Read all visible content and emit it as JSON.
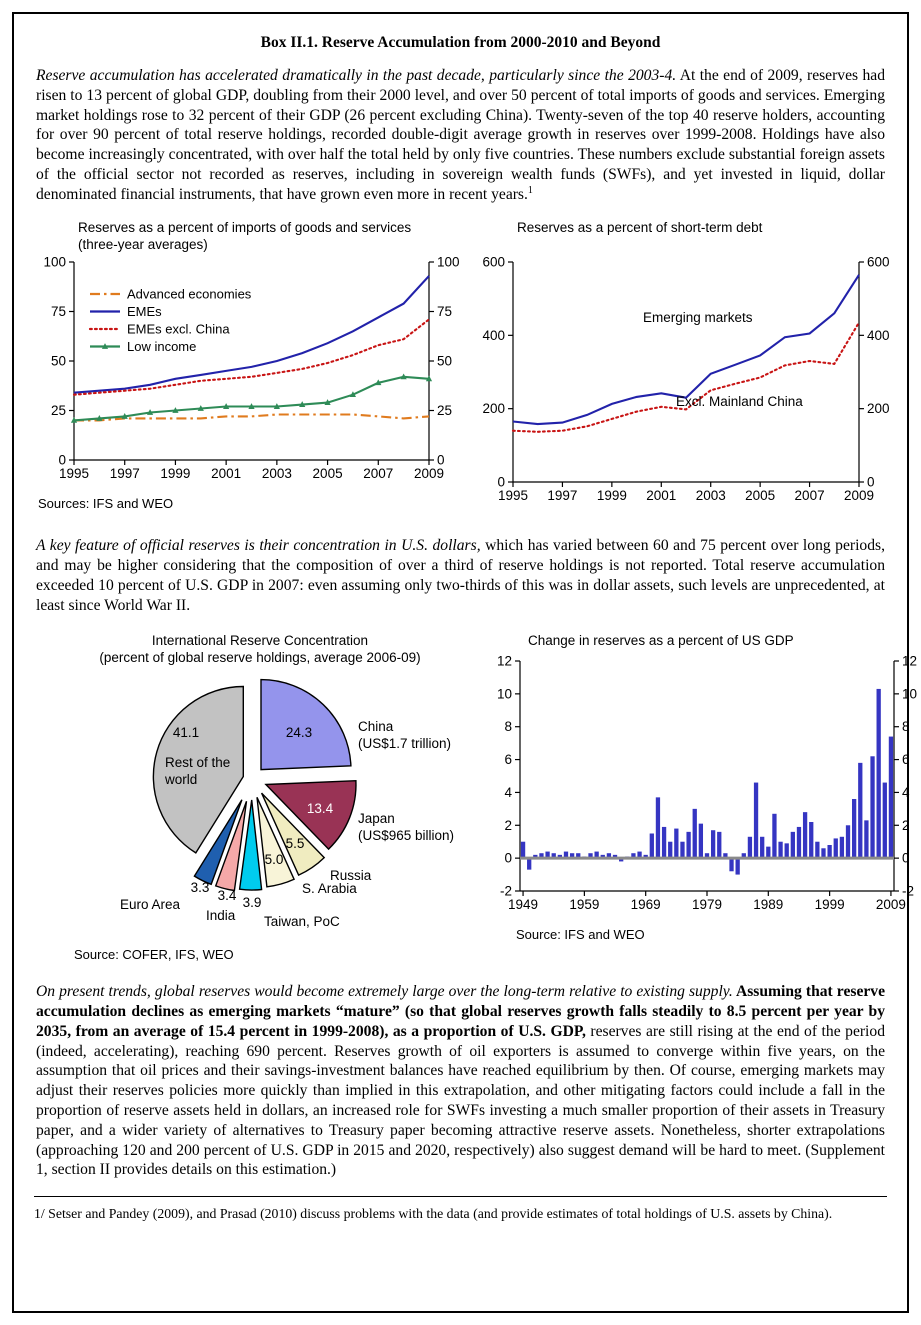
{
  "box": {
    "title": "Box II.1. Reserve Accumulation from 2000-2010 and Beyond"
  },
  "paragraphs": {
    "p1_italic": "Reserve accumulation has accelerated dramatically in the past decade, particularly since the 2003-4.",
    "p1_rest": " At the end of 2009, reserves had risen to 13 percent of global GDP, doubling from their 2000 level, and over 50 percent of total imports of goods and services. Emerging market holdings rose to 32 percent of their GDP (26 percent excluding China). Twenty-seven of the top 40 reserve holders, accounting for over 90 percent of total reserve holdings, recorded double-digit average growth in reserves over 1999-2008. Holdings have also become increasingly concentrated, with over half the total held by only five countries. These numbers exclude substantial foreign assets of the official sector not recorded as reserves, including in sovereign wealth funds (SWFs), and yet invested in liquid, dollar denominated financial instruments, that have grown even more in recent years.",
    "p1_footnote_mark": "1",
    "p2_italic": "A key feature of official reserves is their concentration in U.S. dollars,",
    "p2_rest": " which has varied between 60 and 75 percent over long periods, and may be higher considering that the composition of over a third of reserve holdings is not reported. Total reserve accumulation exceeded 10 percent of U.S. GDP in 2007: even assuming only two-thirds of this was in dollar assets, such levels are unprecedented, at least since World War II.",
    "p3_italic": "On present trends, global reserves would become extremely large over the long-term relative to existing supply.",
    "p3_bold": " Assuming that reserve accumulation declines as emerging markets “mature” (so that global reserves growth falls steadily to 8.5 percent per year by 2035, from an average of 15.4 percent in 1999-2008), as a proportion of U.S. GDP,",
    "p3_rest": " reserves are still rising at the end of the period (indeed, accelerating), reaching 690 percent. Reserves growth of oil exporters is assumed to converge within five years, on the assumption that oil prices and their savings-investment balances have reached equilibrium by then. Of course, emerging markets may adjust their reserves policies more quickly than implied in this extrapolation, and other mitigating factors could include a fall in the proportion of reserve assets held in dollars, an increased role for SWFs investing a much smaller proportion of their assets in Treasury paper, and a wider variety of alternatives to Treasury paper becoming attractive reserve assets. Nonetheless, shorter extrapolations (approaching 120 and 200 percent of U.S. GDP in 2015 and 2020, respectively) also suggest demand will be hard to meet. (Supplement 1, section II provides details on this estimation.)",
    "footnote": "1/ Setser and Pandey (2009), and Prasad (2010) discuss problems with the data (and provide estimates of total holdings of U.S. assets by China)."
  },
  "chart_data": [
    {
      "id": "reserves-vs-imports",
      "type": "line",
      "title": "Reserves as a percent of imports of goods and services (three-year averages)",
      "x": [
        1995,
        1996,
        1997,
        1998,
        1999,
        2000,
        2001,
        2002,
        2003,
        2004,
        2005,
        2006,
        2007,
        2008,
        2009
      ],
      "xticks": [
        1995,
        1997,
        1999,
        2001,
        2003,
        2005,
        2007,
        2009
      ],
      "ylim": [
        0,
        100
      ],
      "yticks": [
        0,
        25,
        50,
        75,
        100
      ],
      "legend_position": "upper-left",
      "series": [
        {
          "name": "Advanced economies",
          "style": "dashdot",
          "color": "#E07B1E",
          "values": [
            20,
            20,
            21,
            21,
            21,
            21,
            22,
            22,
            23,
            23,
            23,
            23,
            22,
            21,
            22
          ]
        },
        {
          "name": "EMEs",
          "style": "solid",
          "color": "#2222AA",
          "values": [
            34,
            35,
            36,
            38,
            41,
            43,
            45,
            47,
            50,
            54,
            59,
            65,
            72,
            79,
            93
          ]
        },
        {
          "name": "EMEs excl. China",
          "style": "dotted",
          "color": "#C81414",
          "values": [
            33,
            34,
            35,
            36,
            38,
            40,
            41,
            42,
            44,
            46,
            49,
            53,
            58,
            61,
            71
          ]
        },
        {
          "name": "Low income",
          "style": "marker",
          "color": "#2E8B57",
          "values": [
            20,
            21,
            22,
            24,
            25,
            26,
            27,
            27,
            27,
            28,
            29,
            33,
            39,
            42,
            41
          ]
        }
      ],
      "source": "Sources: IFS and WEO"
    },
    {
      "id": "reserves-vs-short-term-debt",
      "type": "line",
      "title": "Reserves as a percent of short-term debt",
      "x": [
        1995,
        1996,
        1997,
        1998,
        1999,
        2000,
        2001,
        2002,
        2003,
        2004,
        2005,
        2006,
        2007,
        2008,
        2009
      ],
      "xticks": [
        1995,
        1997,
        1999,
        2001,
        2003,
        2005,
        2007,
        2009
      ],
      "ylim": [
        0,
        600
      ],
      "yticks": [
        0,
        200,
        400,
        600
      ],
      "series": [
        {
          "name": "Emerging markets",
          "style": "solid",
          "color": "#2222AA",
          "values": [
            165,
            158,
            162,
            183,
            213,
            232,
            242,
            230,
            295,
            320,
            345,
            395,
            405,
            460,
            565
          ]
        },
        {
          "name": "Excl. Mainland China",
          "style": "dotted",
          "color": "#C81414",
          "values": [
            140,
            137,
            140,
            152,
            172,
            192,
            205,
            198,
            250,
            268,
            285,
            318,
            330,
            322,
            435
          ]
        }
      ]
    },
    {
      "id": "reserve-concentration-pie",
      "type": "pie",
      "title": "International Reserve Concentration",
      "subtitle": "(percent of global reserve holdings, average 2006-09)",
      "slices": [
        {
          "name": "China",
          "sublabel": "(US$1.7 trillion)",
          "value": 24.3,
          "label": "24.3",
          "color": "#9494EC"
        },
        {
          "name": "Japan",
          "sublabel": "(US$965 billion)",
          "value": 13.4,
          "label": "13.4",
          "color": "#993355"
        },
        {
          "name": "Russia",
          "value": 5.5,
          "label": "5.5",
          "color": "#F0ECC0"
        },
        {
          "name": "S. Arabia",
          "value": 5.0,
          "label": "5.0",
          "color": "#F8F4D8"
        },
        {
          "name": "Taiwan, PoC",
          "value": 3.9,
          "label": "3.9",
          "color": "#00CCEE"
        },
        {
          "name": "India",
          "value": 3.4,
          "label": "3.4",
          "color": "#F5A8A8"
        },
        {
          "name": "Euro Area",
          "value": 3.3,
          "label": "3.3",
          "color": "#1F5FAF"
        },
        {
          "name": "Rest of the world",
          "value": 41.1,
          "label": "41.1",
          "color": "#C2C2C2"
        }
      ],
      "source": "Source: COFER, IFS, WEO"
    },
    {
      "id": "change-in-reserves-usgdp",
      "type": "bar",
      "title": "Change in reserves as a percent of US GDP",
      "years": [
        1949,
        1950,
        1951,
        1952,
        1953,
        1954,
        1955,
        1956,
        1957,
        1958,
        1959,
        1960,
        1961,
        1962,
        1963,
        1964,
        1965,
        1966,
        1967,
        1968,
        1969,
        1970,
        1971,
        1972,
        1973,
        1974,
        1975,
        1976,
        1977,
        1978,
        1979,
        1980,
        1981,
        1982,
        1983,
        1984,
        1985,
        1986,
        1987,
        1988,
        1989,
        1990,
        1991,
        1992,
        1993,
        1994,
        1995,
        1996,
        1997,
        1998,
        1999,
        2000,
        2001,
        2002,
        2003,
        2004,
        2005,
        2006,
        2007,
        2008,
        2009
      ],
      "values": [
        1.0,
        -0.7,
        0.2,
        0.3,
        0.4,
        0.3,
        0.2,
        0.4,
        0.3,
        0.3,
        0.1,
        0.3,
        0.4,
        0.2,
        0.3,
        0.2,
        -0.2,
        0.1,
        0.3,
        0.4,
        0.2,
        1.5,
        3.7,
        1.9,
        1.0,
        1.8,
        1.0,
        1.6,
        3.0,
        2.1,
        0.3,
        1.7,
        1.6,
        0.3,
        -0.8,
        -1.0,
        0.3,
        1.3,
        4.6,
        1.3,
        0.7,
        2.7,
        1.0,
        0.9,
        1.6,
        1.9,
        2.8,
        2.2,
        1.0,
        0.6,
        0.8,
        1.2,
        1.3,
        2.0,
        3.6,
        5.8,
        2.3,
        6.2,
        10.3,
        4.6,
        7.4
      ],
      "ylim": [
        -2,
        12
      ],
      "yticks": [
        -2,
        0,
        2,
        4,
        6,
        8,
        10,
        12
      ],
      "xticks": [
        1949,
        1959,
        1969,
        1979,
        1989,
        1999,
        2009
      ],
      "bar_color": "#3535C2",
      "zero_line_color": "#8A8A8A",
      "source": "Source: IFS and WEO"
    }
  ]
}
